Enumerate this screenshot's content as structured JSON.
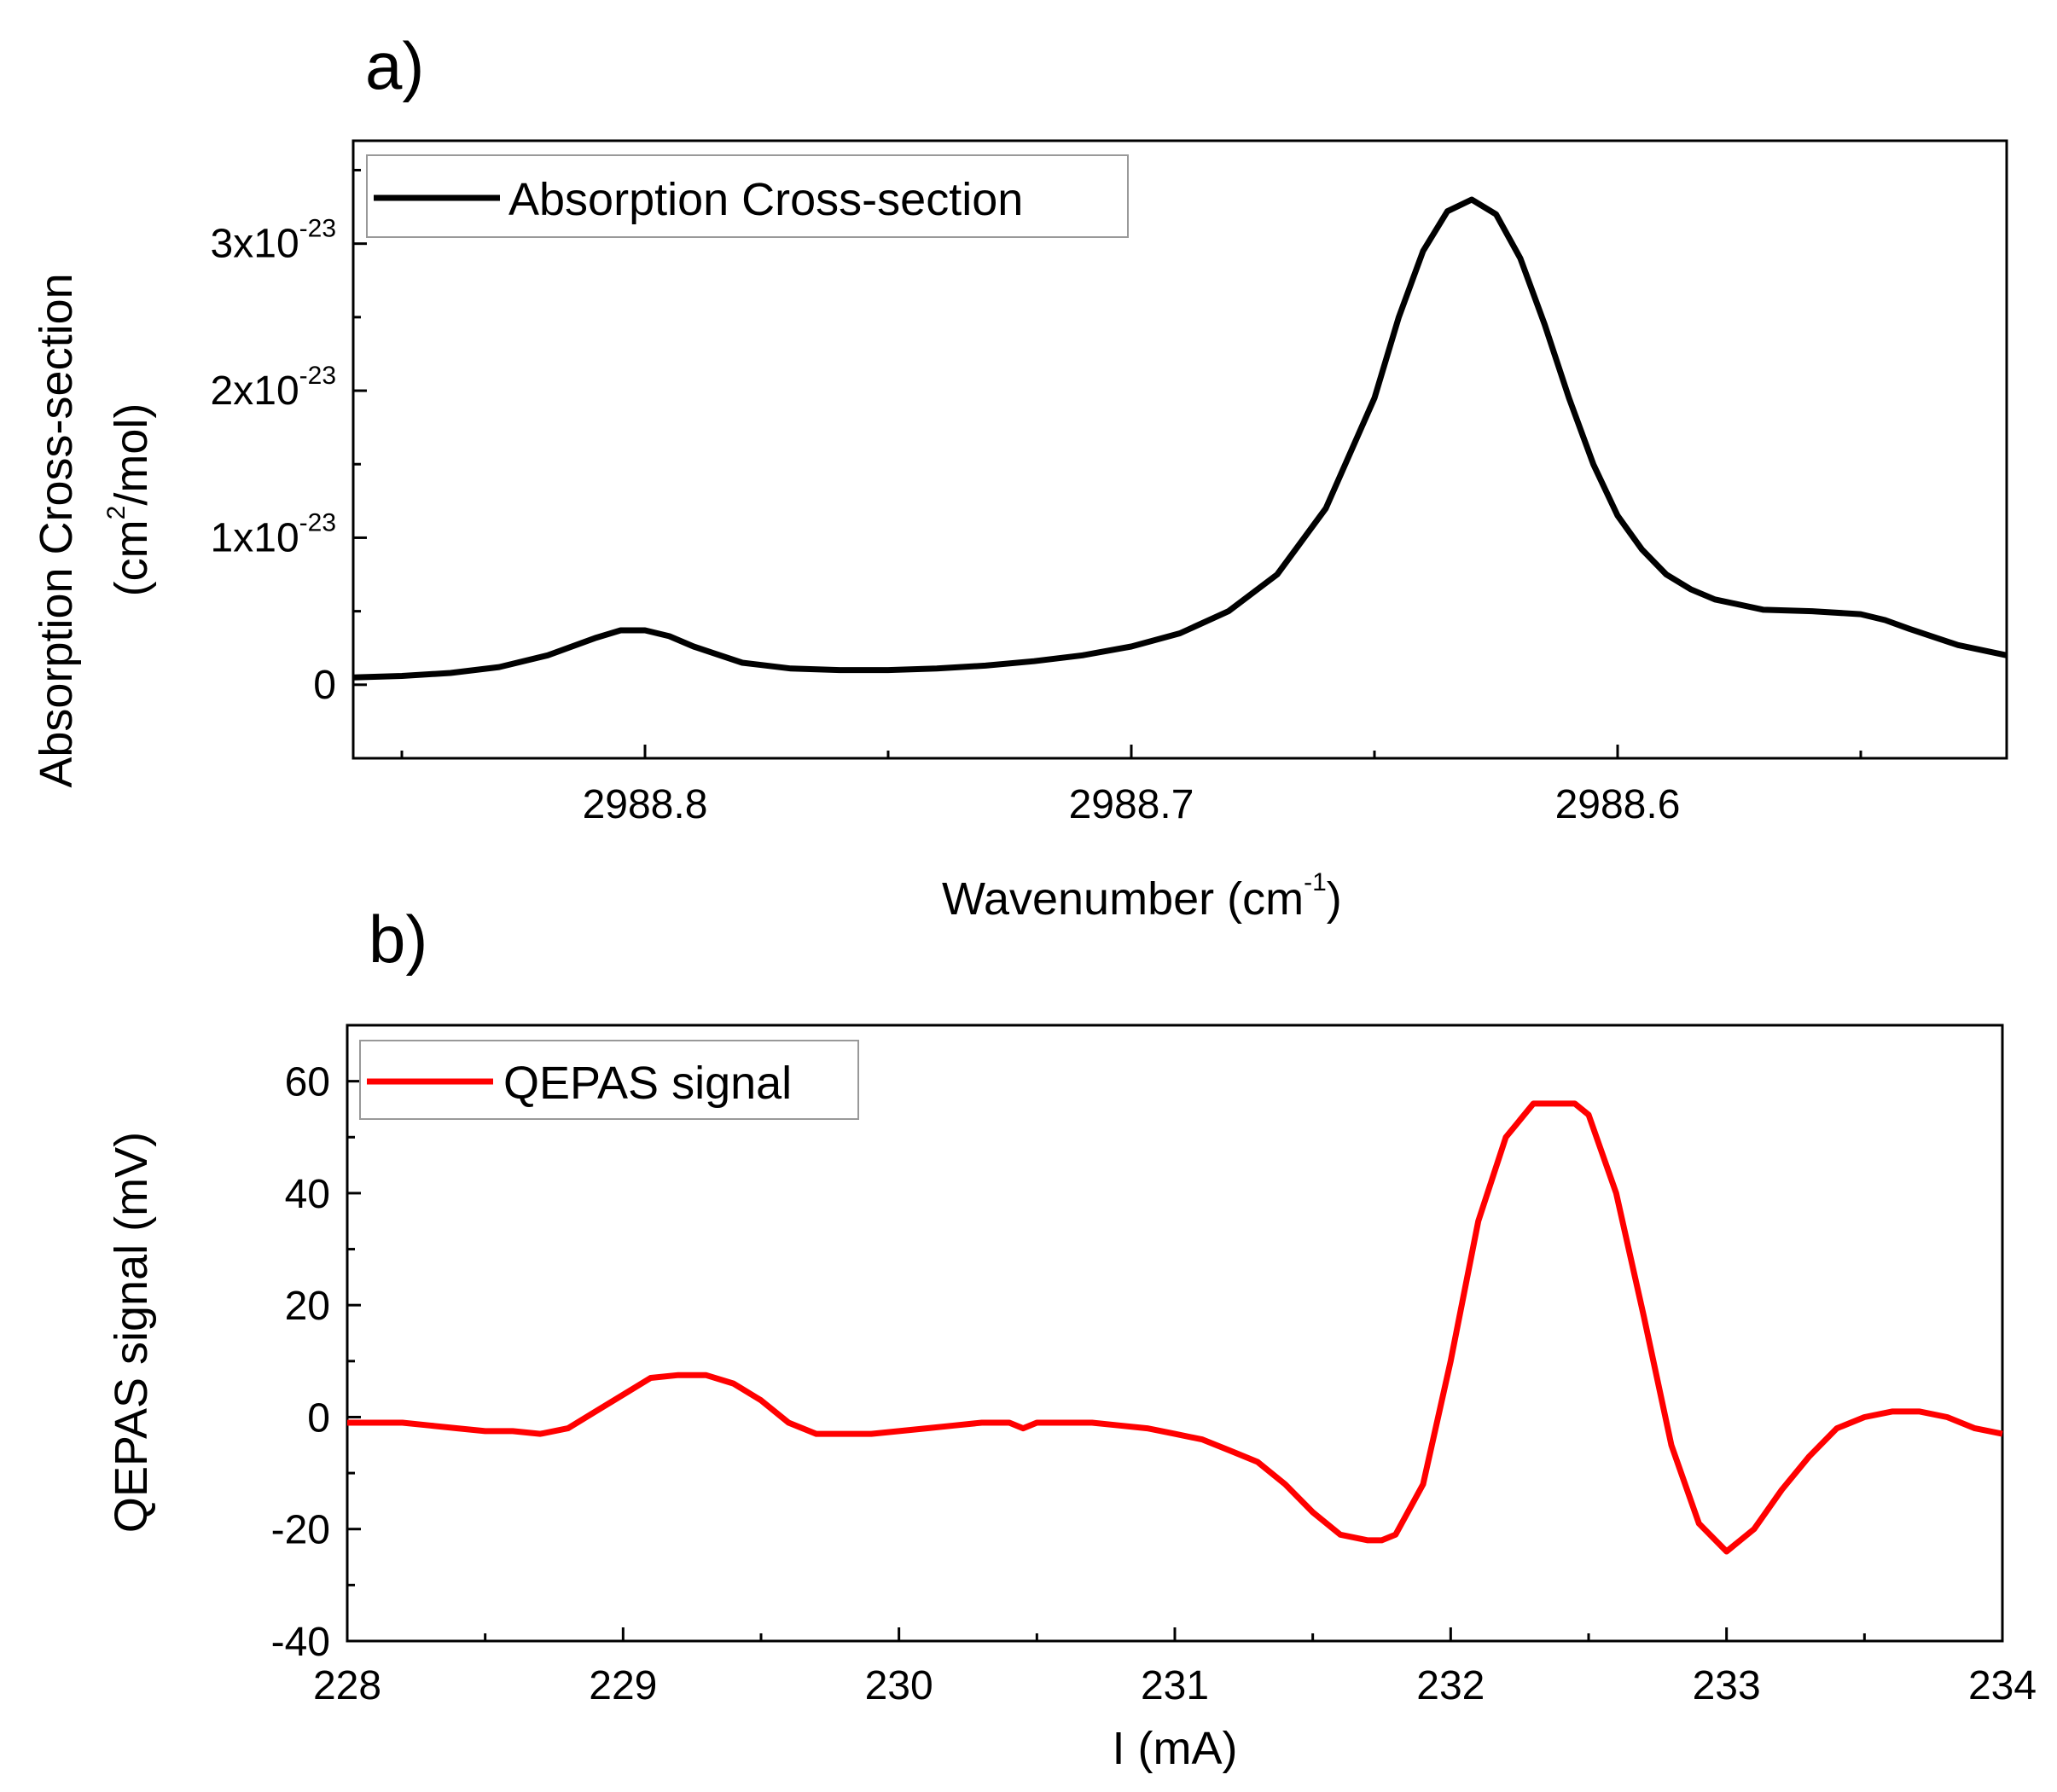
{
  "figure": {
    "panel_a_label": "a)",
    "panel_b_label": "b)"
  },
  "chart_data": [
    {
      "type": "line",
      "panel": "a)",
      "title": "",
      "xlabel": "Wavenumber (cm",
      "xlabel_sup": "-1",
      "xlabel_end": ")",
      "ylabel_line1": "Absorption Cross-section",
      "ylabel_line2_pre": "(cm",
      "ylabel_line2_sup": "2",
      "ylabel_line2_post": "/mol)",
      "x_reversed": true,
      "xlim": [
        2988.86,
        2988.52
      ],
      "ylim": [
        -5e-24,
        3.7e-23
      ],
      "xticks": [
        {
          "value": 2988.8,
          "label": "2988.8"
        },
        {
          "value": 2988.7,
          "label": "2988.7"
        },
        {
          "value": 2988.6,
          "label": "2988.6"
        }
      ],
      "xminor": [
        2988.85,
        2988.75,
        2988.65,
        2988.55
      ],
      "yticks": [
        {
          "value": 0,
          "base": "0",
          "exp": ""
        },
        {
          "value": 1e-23,
          "base": "1x10",
          "exp": "-23"
        },
        {
          "value": 2e-23,
          "base": "2x10",
          "exp": "-23"
        },
        {
          "value": 3e-23,
          "base": "3x10",
          "exp": "-23"
        }
      ],
      "yminor": [
        -5e-24,
        5e-24,
        1.5e-23,
        2.5e-23,
        3.5e-23
      ],
      "legend": {
        "label": "Absorption Cross-section",
        "position": "top-left"
      },
      "series": [
        {
          "name": "Absorption Cross-section",
          "color": "#000000",
          "x": [
            2988.86,
            2988.85,
            2988.84,
            2988.83,
            2988.82,
            2988.81,
            2988.805,
            2988.8,
            2988.795,
            2988.79,
            2988.78,
            2988.77,
            2988.76,
            2988.75,
            2988.74,
            2988.73,
            2988.72,
            2988.71,
            2988.7,
            2988.69,
            2988.68,
            2988.67,
            2988.66,
            2988.65,
            2988.645,
            2988.64,
            2988.635,
            2988.63,
            2988.625,
            2988.62,
            2988.615,
            2988.61,
            2988.605,
            2988.6,
            2988.595,
            2988.59,
            2988.585,
            2988.58,
            2988.57,
            2988.56,
            2988.55,
            2988.545,
            2988.54,
            2988.53,
            2988.52
          ],
          "y": [
            5e-25,
            6e-25,
            8e-25,
            1.2e-24,
            2e-24,
            3.2e-24,
            3.7e-24,
            3.7e-24,
            3.3e-24,
            2.6e-24,
            1.5e-24,
            1.1e-24,
            1e-24,
            1e-24,
            1.1e-24,
            1.3e-24,
            1.6e-24,
            2e-24,
            2.6e-24,
            3.5e-24,
            5e-24,
            7.5e-24,
            1.2e-23,
            1.95e-23,
            2.5e-23,
            2.95e-23,
            3.22e-23,
            3.3e-23,
            3.2e-23,
            2.9e-23,
            2.45e-23,
            1.95e-23,
            1.5e-23,
            1.15e-23,
            9.2e-24,
            7.5e-24,
            6.5e-24,
            5.8e-24,
            5.1e-24,
            5e-24,
            4.8e-24,
            4.4e-24,
            3.8e-24,
            2.7e-24,
            2e-24
          ]
        }
      ]
    },
    {
      "type": "line",
      "panel": "b)",
      "title": "",
      "xlabel": "I (mA)",
      "ylabel": "QEPAS signal (mV)",
      "xlim": [
        228,
        234
      ],
      "ylim": [
        -40,
        70
      ],
      "xticks": [
        {
          "value": 228,
          "label": "228"
        },
        {
          "value": 229,
          "label": "229"
        },
        {
          "value": 230,
          "label": "230"
        },
        {
          "value": 231,
          "label": "231"
        },
        {
          "value": 232,
          "label": "232"
        },
        {
          "value": 233,
          "label": "233"
        },
        {
          "value": 234,
          "label": "234"
        }
      ],
      "xminor": [
        228.5,
        229.5,
        230.5,
        231.5,
        232.5,
        233.5
      ],
      "yticks": [
        {
          "value": -40,
          "label": "-40"
        },
        {
          "value": -20,
          "label": "-20"
        },
        {
          "value": 0,
          "label": "0"
        },
        {
          "value": 20,
          "label": "20"
        },
        {
          "value": 40,
          "label": "40"
        },
        {
          "value": 60,
          "label": "60"
        }
      ],
      "yminor": [
        -30,
        -10,
        10,
        30,
        50,
        70
      ],
      "legend": {
        "label": "QEPAS signal",
        "position": "top-left"
      },
      "series": [
        {
          "name": "QEPAS signal",
          "color": "#ff0000",
          "x": [
            228.0,
            228.1,
            228.2,
            228.3,
            228.4,
            228.5,
            228.6,
            228.7,
            228.8,
            228.9,
            229.0,
            229.1,
            229.2,
            229.3,
            229.4,
            229.5,
            229.6,
            229.7,
            229.8,
            229.9,
            230.0,
            230.1,
            230.2,
            230.3,
            230.4,
            230.45,
            230.5,
            230.6,
            230.7,
            230.8,
            230.9,
            231.0,
            231.1,
            231.2,
            231.3,
            231.4,
            231.5,
            231.6,
            231.7,
            231.75,
            231.8,
            231.9,
            232.0,
            232.1,
            232.2,
            232.3,
            232.4,
            232.45,
            232.5,
            232.6,
            232.7,
            232.8,
            232.9,
            233.0,
            233.1,
            233.2,
            233.3,
            233.4,
            233.5,
            233.6,
            233.7,
            233.8,
            233.9,
            234.0
          ],
          "y": [
            -1,
            -1,
            -1,
            -1.5,
            -2,
            -2.5,
            -2.5,
            -3,
            -2,
            1,
            4,
            7,
            7.5,
            7.5,
            6,
            3,
            -1,
            -3,
            -3,
            -3,
            -2.5,
            -2,
            -1.5,
            -1,
            -1,
            -2,
            -1,
            -1,
            -1,
            -1.5,
            -2,
            -3,
            -4,
            -6,
            -8,
            -12,
            -17,
            -21,
            -22,
            -22,
            -21,
            -12,
            10,
            35,
            50,
            56,
            56,
            56,
            54,
            40,
            18,
            -5,
            -19,
            -24,
            -20,
            -13,
            -7,
            -2,
            0,
            1,
            1,
            0,
            -2,
            -3
          ]
        }
      ]
    }
  ]
}
